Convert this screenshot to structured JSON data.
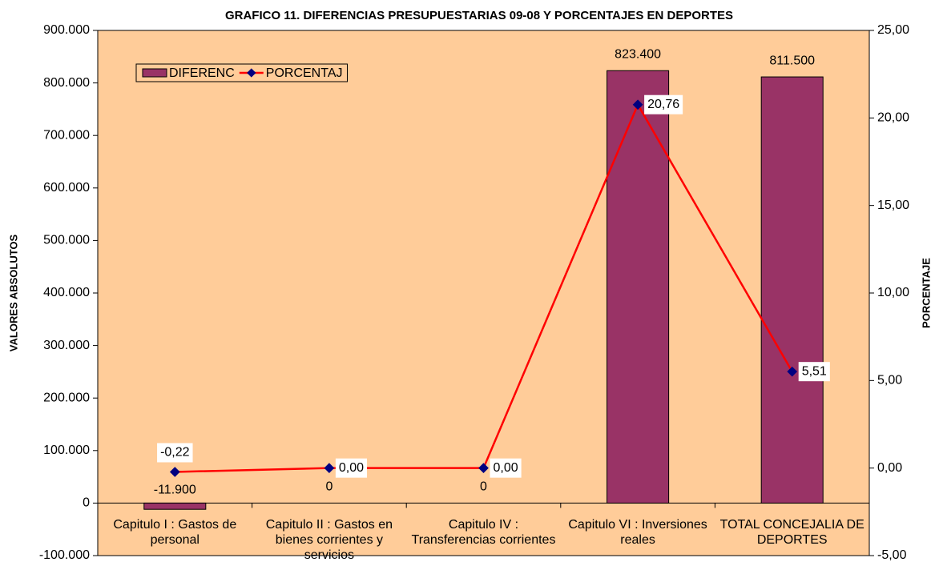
{
  "chart_data": {
    "type": "bar",
    "title": "GRAFICO 11. DIFERENCIAS PRESUPUESTARIAS 09-08 Y PORCENTAJES EN DEPORTES",
    "ylabel": "VALORES ABSOLUTOS",
    "y2label": "PORCENTAJE",
    "categories": [
      "Capitulo I : Gastos de personal",
      "Capitulo II : Gastos en bienes corrientes y servicios",
      "Capitulo IV : Transferencias corrientes",
      "Capitulo VI : Inversiones reales",
      "TOTAL CONCEJALIA DE DEPORTES"
    ],
    "series": [
      {
        "name": "DIFERENC",
        "type": "bar",
        "color": "#993366",
        "values": [
          -11900,
          0,
          0,
          823400,
          811500
        ],
        "value_labels": [
          "-11.900",
          "0",
          "0",
          "823.400",
          "811.500"
        ]
      },
      {
        "name": "PORCENTAJ",
        "type": "line",
        "axis": "y2",
        "color": "#ff0000",
        "marker_color": "#000080",
        "values": [
          -0.22,
          0,
          0,
          20.76,
          5.51
        ],
        "value_labels": [
          "-0,22",
          "0,00",
          "0,00",
          "20,76",
          "5,51"
        ]
      }
    ],
    "ylim": [
      -100000,
      900000
    ],
    "yticks": [
      {
        "value": -100000,
        "label": "-100.000"
      },
      0,
      {
        "value": 100000,
        "label": "100.000"
      },
      {
        "value": 200000,
        "label": "200.000"
      },
      {
        "value": 300000,
        "label": "300.000"
      },
      {
        "value": 400000,
        "label": "400.000"
      },
      {
        "value": 500000,
        "label": "500.000"
      },
      {
        "value": 600000,
        "label": "600.000"
      },
      {
        "value": 700000,
        "label": "700.000"
      },
      {
        "value": 800000,
        "label": "800.000"
      },
      {
        "value": 900000,
        "label": "900.000"
      }
    ],
    "y2lim": [
      -5,
      25
    ],
    "y2ticks": [
      {
        "value": -5,
        "label": "-5,00"
      },
      {
        "value": 0,
        "label": "0,00"
      },
      {
        "value": 5,
        "label": "5,00"
      },
      {
        "value": 10,
        "label": "10,00"
      },
      {
        "value": 15,
        "label": "15,00"
      },
      {
        "value": 20,
        "label": "20,00"
      },
      {
        "value": 25,
        "label": "25,00"
      }
    ],
    "legend": "upper left",
    "background": "#ffcc99"
  }
}
